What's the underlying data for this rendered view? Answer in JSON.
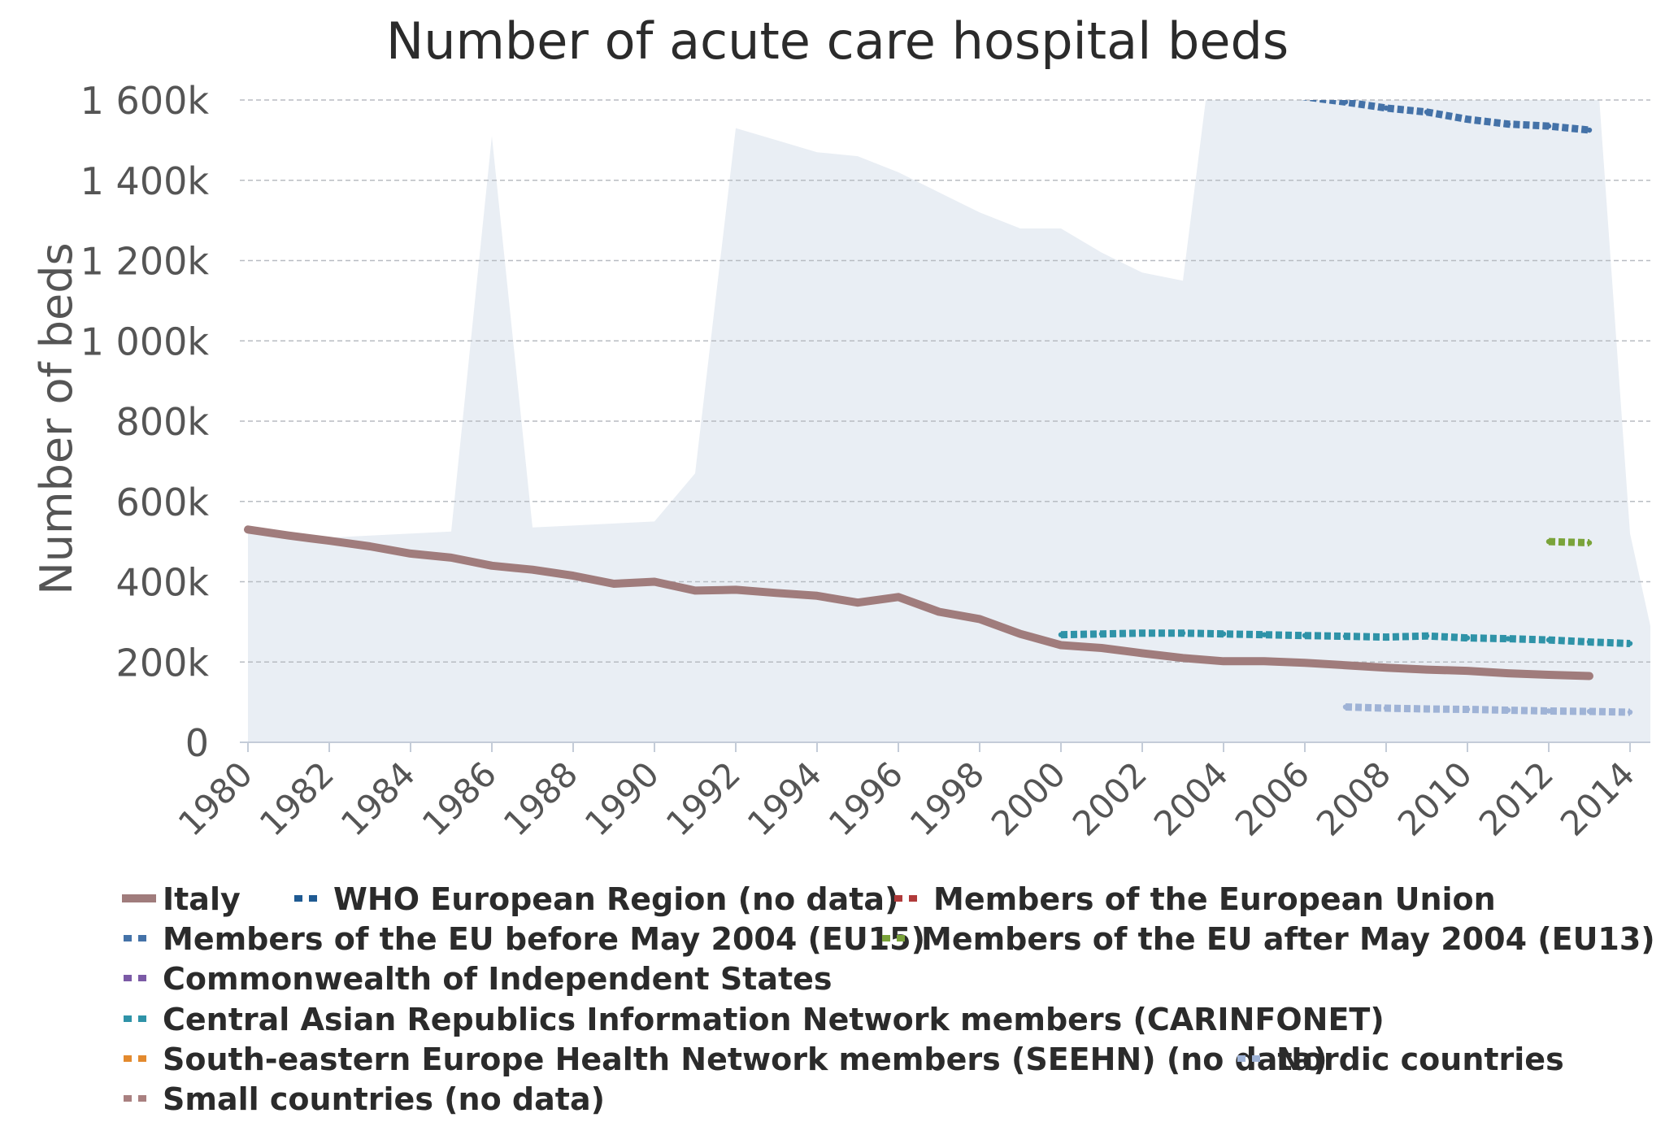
{
  "chart_data": {
    "type": "line",
    "title": "Number of acute care hospital beds",
    "ylabel": "Number of beds",
    "xlabel": "",
    "ylim": [
      0,
      1600000
    ],
    "xlim": [
      1980,
      2015
    ],
    "y_ticks": [
      {
        "value": 0,
        "label": "0"
      },
      {
        "value": 200000,
        "label": "200k"
      },
      {
        "value": 400000,
        "label": "400k"
      },
      {
        "value": 600000,
        "label": "600k"
      },
      {
        "value": 800000,
        "label": "800k"
      },
      {
        "value": 1000000,
        "label": "1 000k"
      },
      {
        "value": 1200000,
        "label": "1 200k"
      },
      {
        "value": 1400000,
        "label": "1 400k"
      },
      {
        "value": 1600000,
        "label": "1 600k"
      }
    ],
    "x_ticks": [
      "1980",
      "1982",
      "1984",
      "1986",
      "1988",
      "1990",
      "1992",
      "1994",
      "1996",
      "1998",
      "2000",
      "2002",
      "2004",
      "2006",
      "2008",
      "2010",
      "2012",
      "2014"
    ],
    "grid": true,
    "range_band": {
      "color": "#e9eef4",
      "x": [
        1980,
        1981,
        1982,
        1983,
        1984,
        1985,
        1986,
        1987,
        1988,
        1989,
        1990,
        1991,
        1992,
        1993,
        1994,
        1995,
        1996,
        1997,
        1998,
        1999,
        2000,
        2001,
        2002,
        2003,
        2004,
        2005,
        2006,
        2007,
        2008,
        2009,
        2010,
        2011,
        2012,
        2013,
        2014,
        2015
      ],
      "upper": [
        530000,
        520000,
        510000,
        515000,
        520000,
        525000,
        1510000,
        535000,
        540000,
        545000,
        550000,
        670000,
        1530000,
        1500000,
        1470000,
        1460000,
        1420000,
        1370000,
        1320000,
        1280000,
        1280000,
        1220000,
        1170000,
        1150000,
        1950000,
        1950000,
        1950000,
        1950000,
        1950000,
        1950000,
        1950000,
        1950000,
        1950000,
        1950000,
        520000,
        60000
      ],
      "lower": [
        0,
        0,
        0,
        0,
        0,
        0,
        0,
        0,
        0,
        0,
        0,
        0,
        0,
        0,
        0,
        0,
        0,
        0,
        0,
        0,
        0,
        0,
        0,
        0,
        0,
        0,
        0,
        0,
        0,
        0,
        0,
        0,
        0,
        0,
        0,
        0
      ]
    },
    "series": [
      {
        "name": "Italy",
        "color": "#a07c7c",
        "style": "solid",
        "x": [
          1980,
          1981,
          1982,
          1983,
          1984,
          1985,
          1986,
          1987,
          1988,
          1989,
          1990,
          1991,
          1992,
          1993,
          1994,
          1995,
          1996,
          1997,
          1998,
          1999,
          2000,
          2001,
          2002,
          2003,
          2004,
          2005,
          2006,
          2007,
          2008,
          2009,
          2010,
          2011,
          2012,
          2013
        ],
        "values": [
          530000,
          515000,
          502000,
          488000,
          470000,
          460000,
          440000,
          430000,
          415000,
          395000,
          400000,
          378000,
          380000,
          372000,
          365000,
          348000,
          362000,
          325000,
          307000,
          270000,
          242000,
          235000,
          222000,
          210000,
          202000,
          202000,
          198000,
          192000,
          186000,
          181000,
          178000,
          172000,
          168000,
          165000
        ]
      },
      {
        "name": "WHO European Region (no data)",
        "color": "#1f5a92",
        "style": "dotted",
        "x": [],
        "values": []
      },
      {
        "name": "Members of the European Union",
        "color": "#b03a3a",
        "style": "dotted",
        "x": [],
        "values": []
      },
      {
        "name": "Members of the EU before May 2004 (EU15)",
        "color": "#4472a8",
        "style": "dotted",
        "x": [
          2004,
          2005,
          2006,
          2007,
          2008,
          2009,
          2010,
          2011,
          2012,
          2013
        ],
        "values": [
          1640000,
          1625000,
          1608000,
          1595000,
          1580000,
          1570000,
          1552000,
          1540000,
          1535000,
          1525000
        ]
      },
      {
        "name": "Members of the EU after May 2004 (EU13)",
        "color": "#7aa33a",
        "style": "dotted",
        "x": [
          2012,
          2013
        ],
        "values": [
          500000,
          497000
        ]
      },
      {
        "name": "Commonwealth of Independent States",
        "color": "#7b5aa6",
        "style": "dotted",
        "x": [],
        "values": []
      },
      {
        "name": "Central Asian Republics Information Network members (CARINFONET)",
        "color": "#2f93a8",
        "style": "dotted",
        "x": [
          2000,
          2001,
          2002,
          2003,
          2004,
          2005,
          2006,
          2007,
          2008,
          2009,
          2010,
          2011,
          2012,
          2013,
          2014
        ],
        "values": [
          268000,
          270000,
          272000,
          272000,
          270000,
          268000,
          266000,
          264000,
          262000,
          265000,
          260000,
          258000,
          255000,
          250000,
          246000
        ]
      },
      {
        "name": "South-eastern Europe Health Network members (SEEHN) (no data)",
        "color": "#e38a2e",
        "style": "dotted",
        "x": [],
        "values": []
      },
      {
        "name": "Nordic countries",
        "color": "#9fb3d6",
        "style": "dotted",
        "x": [
          2007,
          2008,
          2009,
          2010,
          2011,
          2012,
          2013,
          2014
        ],
        "values": [
          88000,
          85000,
          83000,
          82000,
          80000,
          78000,
          77000,
          75000
        ]
      },
      {
        "name": "Small countries (no data)",
        "color": "#a98080",
        "style": "dotted",
        "x": [],
        "values": []
      }
    ],
    "legend": {
      "placement": "bottom",
      "rows": [
        [
          0,
          1,
          2
        ],
        [
          3,
          4
        ],
        [
          5
        ],
        [
          6
        ],
        [
          7,
          8
        ],
        [
          9
        ]
      ]
    }
  }
}
